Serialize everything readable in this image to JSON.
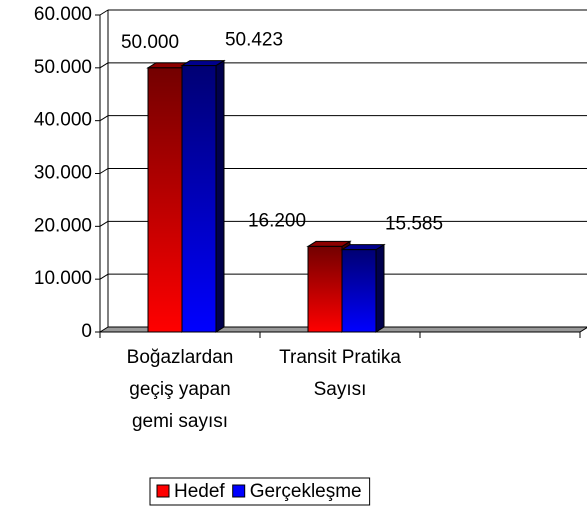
{
  "chart_data": {
    "type": "bar",
    "categories": [
      [
        "Boğazlardan",
        "geçiş yapan",
        "gemi sayısı"
      ],
      [
        "Transit Pratika",
        "Sayısı"
      ]
    ],
    "series": [
      {
        "name": "Hedef",
        "color": "#ff0000",
        "values": [
          50000,
          16200
        ],
        "value_labels": [
          "50.000",
          "16.200"
        ]
      },
      {
        "name": "Gerçekleşme",
        "color": "#0000ff",
        "values": [
          50423,
          15585
        ],
        "value_labels": [
          "50.423",
          "15.585"
        ]
      }
    ],
    "ylim": [
      0,
      60000
    ],
    "yticks": [
      0,
      {
        "value": 10000,
        "label": "10.000"
      },
      {
        "value": 20000,
        "label": "20.000"
      },
      {
        "value": 30000,
        "label": "30.000"
      },
      {
        "value": 40000,
        "label": "40.000"
      },
      {
        "value": 50000,
        "label": "50.000"
      },
      {
        "value": 60000,
        "label": "60.000"
      }
    ],
    "grid": true,
    "legend": "bottom"
  }
}
